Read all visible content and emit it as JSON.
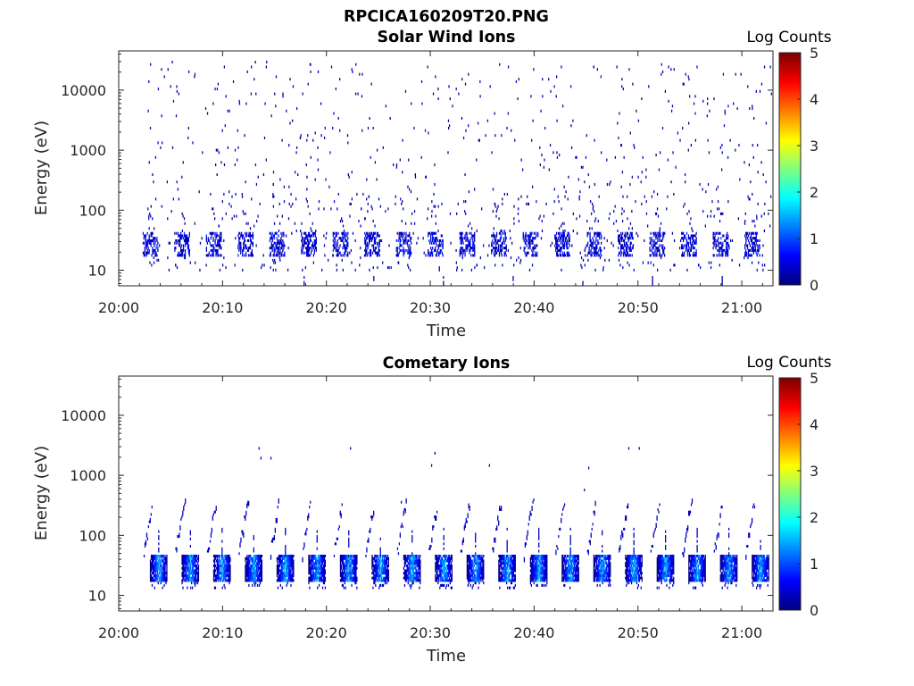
{
  "figure_title": "RPCICA160209T20.PNG",
  "chart_data": [
    {
      "type": "heatmap",
      "title": "Solar Wind Ions",
      "xlabel": "Time",
      "ylabel": "Energy (eV)",
      "x_tick_labels": [
        "20:00",
        "20:10",
        "20:20",
        "20:30",
        "20:40",
        "20:50",
        "21:00"
      ],
      "x_range": [
        "20:00",
        "21:03"
      ],
      "y_tick_labels": [
        "10",
        "100",
        "1000",
        "10000"
      ],
      "y_scale": "log",
      "y_range": [
        5.5,
        45000
      ],
      "colorbar": {
        "label": "Log Counts",
        "ticks": [
          "0",
          "1",
          "2",
          "3",
          "4",
          "5"
        ],
        "range": [
          0,
          5
        ],
        "colormap": "jet"
      },
      "sweep_period_min": 3.05,
      "sweep_start_min": 2.3,
      "sweep_end_min": 62.8,
      "low_band_energy_eV": [
        18,
        42
      ],
      "low_band_level": 0.35,
      "high_energy_scatter_range_eV": [
        10,
        30000
      ],
      "scatter_level": 0.3,
      "grid": false
    },
    {
      "type": "heatmap",
      "title": "Cometary Ions",
      "xlabel": "Time",
      "ylabel": "Energy (eV)",
      "x_tick_labels": [
        "20:00",
        "20:10",
        "20:20",
        "20:30",
        "20:40",
        "20:50",
        "21:00"
      ],
      "x_range": [
        "20:00",
        "21:03"
      ],
      "y_tick_labels": [
        "10",
        "100",
        "1000",
        "10000"
      ],
      "y_scale": "log",
      "y_range": [
        5.5,
        45000
      ],
      "colorbar": {
        "label": "Log Counts",
        "ticks": [
          "0",
          "1",
          "2",
          "3",
          "4",
          "5"
        ],
        "range": [
          0,
          5
        ],
        "colormap": "jet"
      },
      "sweep_period_min": 3.05,
      "sweep_start_min": 3.0,
      "sweep_end_min": 62.8,
      "core_band_energy_eV": [
        18,
        45
      ],
      "core_peak_level": 1.6,
      "tail_energy_max_eV": 400,
      "grid": false
    }
  ],
  "colors": {
    "colormap_low": "#00008f",
    "colormap_high": "#800000",
    "axis": "#262626"
  }
}
